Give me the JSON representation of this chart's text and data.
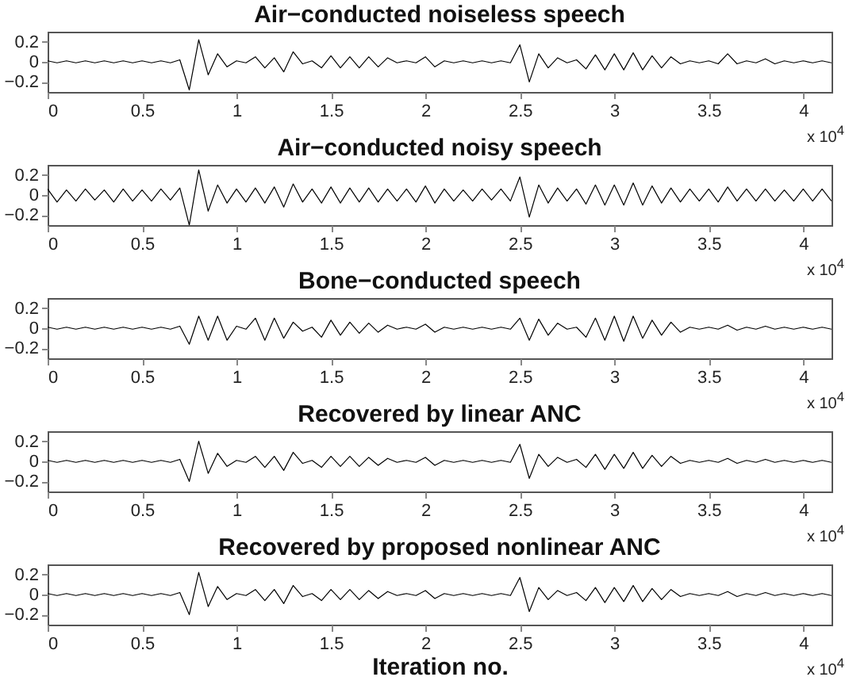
{
  "chart_data": [
    {
      "type": "line",
      "title": "Air−conducted noiseless speech",
      "color": "#000000",
      "xlim": [
        0,
        4.15
      ],
      "ylim": [
        -0.3,
        0.3
      ],
      "yticks": [
        -0.2,
        0,
        0.2
      ],
      "xticks": [
        0,
        0.5,
        1,
        1.5,
        2,
        2.5,
        3,
        3.5,
        4
      ],
      "annotations": [
        "x 10$^{4}$"
      ],
      "x": [
        0,
        0.05,
        0.1,
        0.15,
        0.2,
        0.25,
        0.3,
        0.35,
        0.4,
        0.45,
        0.5,
        0.55,
        0.6,
        0.65,
        0.7,
        0.75,
        0.8,
        0.85,
        0.9,
        0.95,
        1,
        1.05,
        1.1,
        1.15,
        1.2,
        1.25,
        1.3,
        1.35,
        1.4,
        1.45,
        1.5,
        1.55,
        1.6,
        1.65,
        1.7,
        1.75,
        1.8,
        1.85,
        1.9,
        1.95,
        2,
        2.05,
        2.1,
        2.15,
        2.2,
        2.25,
        2.3,
        2.35,
        2.4,
        2.45,
        2.5,
        2.55,
        2.6,
        2.65,
        2.7,
        2.75,
        2.8,
        2.85,
        2.9,
        2.95,
        3,
        3.05,
        3.1,
        3.15,
        3.2,
        3.25,
        3.3,
        3.35,
        3.4,
        3.45,
        3.5,
        3.55,
        3.6,
        3.65,
        3.7,
        3.75,
        3.8,
        3.85,
        3.9,
        3.95,
        4,
        4.05,
        4.1,
        4.15
      ],
      "values": [
        0.01,
        -0.01,
        0.01,
        -0.01,
        0.01,
        -0.01,
        0.01,
        -0.01,
        0.01,
        -0.01,
        0.01,
        -0.01,
        0.01,
        -0.01,
        0.02,
        -0.28,
        0.22,
        -0.13,
        0.08,
        -0.05,
        0.01,
        -0.01,
        0.05,
        -0.06,
        0.04,
        -0.1,
        0.1,
        -0.02,
        0.01,
        -0.06,
        0.06,
        -0.06,
        0.05,
        -0.06,
        0.05,
        -0.05,
        0.04,
        -0.01,
        0.01,
        -0.01,
        0.05,
        -0.05,
        0.01,
        -0.01,
        0.01,
        -0.01,
        0.01,
        -0.01,
        0.01,
        -0.01,
        0.17,
        -0.2,
        0.08,
        -0.06,
        0.04,
        -0.01,
        0.02,
        -0.07,
        0.07,
        -0.08,
        0.08,
        -0.08,
        0.09,
        -0.08,
        0.06,
        -0.06,
        0.05,
        -0.02,
        0.01,
        -0.01,
        0.01,
        -0.02,
        0.08,
        -0.02,
        0.01,
        -0.01,
        0.03,
        -0.02,
        0.01,
        -0.01,
        0.01,
        -0.01,
        0.01,
        -0.01
      ]
    },
    {
      "type": "line",
      "title": "Air−conducted noisy speech",
      "color": "#000000",
      "xlim": [
        0,
        4.15
      ],
      "ylim": [
        -0.3,
        0.3
      ],
      "yticks": [
        -0.2,
        0,
        0.2
      ],
      "xticks": [
        0,
        0.5,
        1,
        1.5,
        2,
        2.5,
        3,
        3.5,
        4
      ],
      "annotations": [
        "x 10$^{4}$"
      ],
      "x": [
        0,
        0.05,
        0.1,
        0.15,
        0.2,
        0.25,
        0.3,
        0.35,
        0.4,
        0.45,
        0.5,
        0.55,
        0.6,
        0.65,
        0.7,
        0.75,
        0.8,
        0.85,
        0.9,
        0.95,
        1,
        1.05,
        1.1,
        1.15,
        1.2,
        1.25,
        1.3,
        1.35,
        1.4,
        1.45,
        1.5,
        1.55,
        1.6,
        1.65,
        1.7,
        1.75,
        1.8,
        1.85,
        1.9,
        1.95,
        2,
        2.05,
        2.1,
        2.15,
        2.2,
        2.25,
        2.3,
        2.35,
        2.4,
        2.45,
        2.5,
        2.55,
        2.6,
        2.65,
        2.7,
        2.75,
        2.8,
        2.85,
        2.9,
        2.95,
        3,
        3.05,
        3.1,
        3.15,
        3.2,
        3.25,
        3.3,
        3.35,
        3.4,
        3.45,
        3.5,
        3.55,
        3.6,
        3.65,
        3.7,
        3.75,
        3.8,
        3.85,
        3.9,
        3.95,
        4,
        4.05,
        4.1,
        4.15
      ],
      "values": [
        0.06,
        -0.07,
        0.05,
        -0.06,
        0.06,
        -0.05,
        0.05,
        -0.07,
        0.06,
        -0.06,
        0.05,
        -0.06,
        0.06,
        -0.05,
        0.07,
        -0.3,
        0.25,
        -0.16,
        0.1,
        -0.08,
        0.06,
        -0.07,
        0.07,
        -0.08,
        0.08,
        -0.12,
        0.11,
        -0.07,
        0.06,
        -0.08,
        0.08,
        -0.08,
        0.07,
        -0.07,
        0.07,
        -0.07,
        0.06,
        -0.06,
        0.06,
        -0.07,
        0.09,
        -0.08,
        0.06,
        -0.06,
        0.05,
        -0.06,
        0.06,
        -0.05,
        0.06,
        -0.06,
        0.18,
        -0.22,
        0.1,
        -0.08,
        0.07,
        -0.06,
        0.06,
        -0.09,
        0.1,
        -0.1,
        0.1,
        -0.1,
        0.12,
        -0.1,
        0.09,
        -0.08,
        0.07,
        -0.07,
        0.06,
        -0.06,
        0.06,
        -0.07,
        0.08,
        -0.06,
        0.06,
        -0.06,
        0.06,
        -0.06,
        0.05,
        -0.06,
        0.06,
        -0.06,
        0.06,
        -0.06
      ]
    },
    {
      "type": "line",
      "title": "Bone−conducted speech",
      "color": "#000000",
      "xlim": [
        0,
        4.15
      ],
      "ylim": [
        -0.3,
        0.3
      ],
      "yticks": [
        -0.2,
        0,
        0.2
      ],
      "xticks": [
        0,
        0.5,
        1,
        1.5,
        2,
        2.5,
        3,
        3.5,
        4
      ],
      "annotations": [
        "x 10$^{4}$"
      ],
      "x": [
        0,
        0.05,
        0.1,
        0.15,
        0.2,
        0.25,
        0.3,
        0.35,
        0.4,
        0.45,
        0.5,
        0.55,
        0.6,
        0.65,
        0.7,
        0.75,
        0.8,
        0.85,
        0.9,
        0.95,
        1,
        1.05,
        1.1,
        1.15,
        1.2,
        1.25,
        1.3,
        1.35,
        1.4,
        1.45,
        1.5,
        1.55,
        1.6,
        1.65,
        1.7,
        1.75,
        1.8,
        1.85,
        1.9,
        1.95,
        2,
        2.05,
        2.1,
        2.15,
        2.2,
        2.25,
        2.3,
        2.35,
        2.4,
        2.45,
        2.5,
        2.55,
        2.6,
        2.65,
        2.7,
        2.75,
        2.8,
        2.85,
        2.9,
        2.95,
        3,
        3.05,
        3.1,
        3.15,
        3.2,
        3.25,
        3.3,
        3.35,
        3.4,
        3.45,
        3.5,
        3.55,
        3.6,
        3.65,
        3.7,
        3.75,
        3.8,
        3.85,
        3.9,
        3.95,
        4,
        4.05,
        4.1,
        4.15
      ],
      "values": [
        0.01,
        -0.01,
        0.01,
        -0.01,
        0.01,
        -0.01,
        0.01,
        -0.01,
        0.01,
        -0.01,
        0.01,
        -0.01,
        0.01,
        -0.01,
        0.02,
        -0.16,
        0.12,
        -0.12,
        0.12,
        -0.12,
        0.02,
        -0.01,
        0.1,
        -0.12,
        0.1,
        -0.1,
        0.06,
        -0.03,
        0.01,
        -0.09,
        0.08,
        -0.07,
        0.06,
        -0.05,
        0.05,
        -0.04,
        0.03,
        -0.01,
        0.01,
        -0.01,
        0.04,
        -0.04,
        0.01,
        -0.01,
        0.01,
        -0.01,
        0.01,
        -0.01,
        0.01,
        -0.01,
        0.1,
        -0.12,
        0.09,
        -0.07,
        0.05,
        -0.01,
        0.01,
        -0.09,
        0.1,
        -0.12,
        0.12,
        -0.13,
        0.12,
        -0.1,
        0.08,
        -0.07,
        0.06,
        -0.04,
        0.01,
        -0.01,
        0.01,
        -0.01,
        0.03,
        -0.02,
        0.01,
        -0.01,
        0.02,
        -0.01,
        0.01,
        -0.01,
        0.01,
        -0.01,
        0.01,
        -0.01
      ]
    },
    {
      "type": "line",
      "title": "Recovered by linear ANC",
      "color": "#000000",
      "xlim": [
        0,
        4.15
      ],
      "ylim": [
        -0.3,
        0.3
      ],
      "yticks": [
        -0.2,
        0,
        0.2
      ],
      "xticks": [
        0,
        0.5,
        1,
        1.5,
        2,
        2.5,
        3,
        3.5,
        4
      ],
      "annotations": [
        "x 10$^{4}$"
      ],
      "x": [
        0,
        0.05,
        0.1,
        0.15,
        0.2,
        0.25,
        0.3,
        0.35,
        0.4,
        0.45,
        0.5,
        0.55,
        0.6,
        0.65,
        0.7,
        0.75,
        0.8,
        0.85,
        0.9,
        0.95,
        1,
        1.05,
        1.1,
        1.15,
        1.2,
        1.25,
        1.3,
        1.35,
        1.4,
        1.45,
        1.5,
        1.55,
        1.6,
        1.65,
        1.7,
        1.75,
        1.8,
        1.85,
        1.9,
        1.95,
        2,
        2.05,
        2.1,
        2.15,
        2.2,
        2.25,
        2.3,
        2.35,
        2.4,
        2.45,
        2.5,
        2.55,
        2.6,
        2.65,
        2.7,
        2.75,
        2.8,
        2.85,
        2.9,
        2.95,
        3,
        3.05,
        3.1,
        3.15,
        3.2,
        3.25,
        3.3,
        3.35,
        3.4,
        3.45,
        3.5,
        3.55,
        3.6,
        3.65,
        3.7,
        3.75,
        3.8,
        3.85,
        3.9,
        3.95,
        4,
        4.05,
        4.1,
        4.15
      ],
      "values": [
        0.01,
        -0.01,
        0.01,
        -0.01,
        0.01,
        -0.01,
        0.01,
        -0.01,
        0.01,
        -0.01,
        0.01,
        -0.01,
        0.01,
        -0.01,
        0.02,
        -0.2,
        0.2,
        -0.12,
        0.08,
        -0.05,
        0.01,
        -0.01,
        0.05,
        -0.06,
        0.05,
        -0.09,
        0.09,
        -0.02,
        0.01,
        -0.06,
        0.05,
        -0.05,
        0.05,
        -0.05,
        0.04,
        -0.04,
        0.03,
        -0.01,
        0.01,
        -0.01,
        0.04,
        -0.04,
        0.01,
        -0.01,
        0.01,
        -0.01,
        0.01,
        -0.01,
        0.01,
        -0.01,
        0.17,
        -0.17,
        0.07,
        -0.05,
        0.04,
        -0.01,
        0.02,
        -0.06,
        0.07,
        -0.08,
        0.07,
        -0.07,
        0.09,
        -0.07,
        0.06,
        -0.05,
        0.05,
        -0.02,
        0.01,
        -0.01,
        0.01,
        -0.01,
        0.03,
        -0.02,
        0.01,
        -0.01,
        0.02,
        -0.01,
        0.01,
        -0.01,
        0.01,
        -0.01,
        0.01,
        -0.01
      ]
    },
    {
      "type": "line",
      "title": "Recovered by proposed nonlinear ANC",
      "xlabel": "Iteration no.",
      "color": "#000000",
      "xlim": [
        0,
        4.15
      ],
      "ylim": [
        -0.3,
        0.3
      ],
      "yticks": [
        -0.2,
        0,
        0.2
      ],
      "xticks": [
        0,
        0.5,
        1,
        1.5,
        2,
        2.5,
        3,
        3.5,
        4
      ],
      "annotations": [
        "x 10$^{4}$"
      ],
      "x": [
        0,
        0.05,
        0.1,
        0.15,
        0.2,
        0.25,
        0.3,
        0.35,
        0.4,
        0.45,
        0.5,
        0.55,
        0.6,
        0.65,
        0.7,
        0.75,
        0.8,
        0.85,
        0.9,
        0.95,
        1,
        1.05,
        1.1,
        1.15,
        1.2,
        1.25,
        1.3,
        1.35,
        1.4,
        1.45,
        1.5,
        1.55,
        1.6,
        1.65,
        1.7,
        1.75,
        1.8,
        1.85,
        1.9,
        1.95,
        2,
        2.05,
        2.1,
        2.15,
        2.2,
        2.25,
        2.3,
        2.35,
        2.4,
        2.45,
        2.5,
        2.55,
        2.6,
        2.65,
        2.7,
        2.75,
        2.8,
        2.85,
        2.9,
        2.95,
        3,
        3.05,
        3.1,
        3.15,
        3.2,
        3.25,
        3.3,
        3.35,
        3.4,
        3.45,
        3.5,
        3.55,
        3.6,
        3.65,
        3.7,
        3.75,
        3.8,
        3.85,
        3.9,
        3.95,
        4,
        4.05,
        4.1,
        4.15
      ],
      "values": [
        0.01,
        -0.01,
        0.01,
        -0.01,
        0.01,
        -0.01,
        0.01,
        -0.01,
        0.01,
        -0.01,
        0.01,
        -0.01,
        0.01,
        -0.01,
        0.02,
        -0.2,
        0.22,
        -0.12,
        0.08,
        -0.05,
        0.01,
        -0.01,
        0.05,
        -0.06,
        0.05,
        -0.09,
        0.09,
        -0.02,
        0.01,
        -0.06,
        0.05,
        -0.05,
        0.05,
        -0.05,
        0.04,
        -0.04,
        0.03,
        -0.01,
        0.01,
        -0.01,
        0.04,
        -0.04,
        0.01,
        -0.01,
        0.01,
        -0.01,
        0.01,
        -0.01,
        0.01,
        -0.01,
        0.17,
        -0.17,
        0.07,
        -0.05,
        0.04,
        -0.01,
        0.02,
        -0.06,
        0.07,
        -0.08,
        0.07,
        -0.07,
        0.09,
        -0.07,
        0.06,
        -0.05,
        0.05,
        -0.02,
        0.01,
        -0.01,
        0.01,
        -0.01,
        0.03,
        -0.02,
        0.01,
        -0.01,
        0.02,
        -0.01,
        0.01,
        -0.01,
        0.01,
        -0.01,
        0.01,
        -0.01
      ]
    }
  ]
}
